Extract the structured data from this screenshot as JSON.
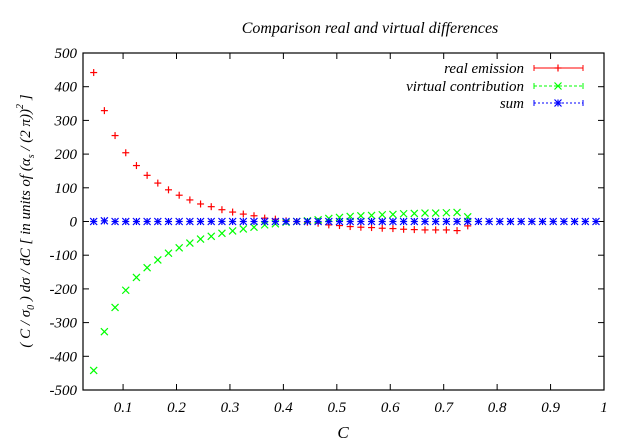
{
  "chart_data": {
    "type": "scatter",
    "title": "Comparison real and virtual differences",
    "xlabel": "C",
    "ylabel": "( C / σ0 ) dσ / dC  [ in units of (αs / (2 π))^2 ]",
    "ylabel_parts": {
      "pre": "( C / σ",
      "sub0": "0",
      "mid": " ) dσ / dC  [ in units of (α",
      "subs": "s",
      "post": " / (2 π))",
      "sup": "2",
      "end": " ]"
    },
    "xlim": [
      0.025,
      1
    ],
    "ylim": [
      -500,
      500
    ],
    "xticks": [
      "0.1",
      "0.2",
      "0.3",
      "0.4",
      "0.5",
      "0.6",
      "0.7",
      "0.8",
      "0.9",
      "1"
    ],
    "yticks": [
      "-500",
      "-400",
      "-300",
      "-200",
      "-100",
      "0",
      "100",
      "200",
      "300",
      "400",
      "500"
    ],
    "grid": false,
    "legend_position": "top-right",
    "series": [
      {
        "name": "real emission",
        "color": "#ff0000",
        "marker": "plus",
        "x": [
          0.045,
          0.065,
          0.085,
          0.105,
          0.125,
          0.145,
          0.165,
          0.185,
          0.205,
          0.225,
          0.245,
          0.265,
          0.285,
          0.305,
          0.325,
          0.345,
          0.365,
          0.385,
          0.405,
          0.425,
          0.445,
          0.465,
          0.485,
          0.505,
          0.525,
          0.545,
          0.565,
          0.585,
          0.605,
          0.625,
          0.645,
          0.665,
          0.685,
          0.705,
          0.725,
          0.745
        ],
        "y": [
          442,
          329,
          255,
          204,
          166,
          137,
          114,
          94,
          78,
          64,
          52,
          44,
          35,
          28,
          22,
          17,
          10,
          7,
          2,
          0,
          -2,
          -5,
          -10,
          -12,
          -15,
          -17,
          -18,
          -20,
          -21,
          -23,
          -24,
          -25,
          -25,
          -25,
          -27,
          -13
        ]
      },
      {
        "name": "virtual contribution",
        "color": "#00ff00",
        "marker": "cross",
        "x": [
          0.045,
          0.065,
          0.085,
          0.105,
          0.125,
          0.145,
          0.165,
          0.185,
          0.205,
          0.225,
          0.245,
          0.265,
          0.285,
          0.305,
          0.325,
          0.345,
          0.365,
          0.385,
          0.405,
          0.425,
          0.445,
          0.465,
          0.485,
          0.505,
          0.525,
          0.545,
          0.565,
          0.585,
          0.605,
          0.625,
          0.645,
          0.665,
          0.685,
          0.705,
          0.725,
          0.745
        ],
        "y": [
          -442,
          -327,
          -255,
          -204,
          -166,
          -137,
          -114,
          -94,
          -78,
          -64,
          -52,
          -44,
          -35,
          -28,
          -22,
          -17,
          -10,
          -7,
          -2,
          0,
          2,
          5,
          9,
          12,
          15,
          17,
          18,
          20,
          21,
          23,
          24,
          25,
          25,
          26,
          27,
          14
        ]
      },
      {
        "name": "sum",
        "color": "#0000ff",
        "marker": "star",
        "x": [
          0.045,
          0.065,
          0.085,
          0.105,
          0.125,
          0.145,
          0.165,
          0.185,
          0.205,
          0.225,
          0.245,
          0.265,
          0.285,
          0.305,
          0.325,
          0.345,
          0.365,
          0.385,
          0.405,
          0.425,
          0.445,
          0.465,
          0.485,
          0.505,
          0.525,
          0.545,
          0.565,
          0.585,
          0.605,
          0.625,
          0.645,
          0.665,
          0.685,
          0.705,
          0.725,
          0.745,
          0.765,
          0.785,
          0.805,
          0.825,
          0.845,
          0.865,
          0.885,
          0.905,
          0.925,
          0.945,
          0.965,
          0.985
        ],
        "y": [
          0,
          2,
          0,
          0,
          0,
          0,
          0,
          0,
          0,
          0,
          0,
          0,
          0,
          0,
          0,
          0,
          0,
          0,
          0,
          0,
          0,
          0,
          0,
          0,
          0,
          0,
          0,
          0,
          0,
          0,
          0,
          0,
          0,
          0,
          0,
          0,
          0,
          0,
          0,
          0,
          0,
          0,
          0,
          0,
          0,
          0,
          0,
          0
        ]
      }
    ]
  }
}
